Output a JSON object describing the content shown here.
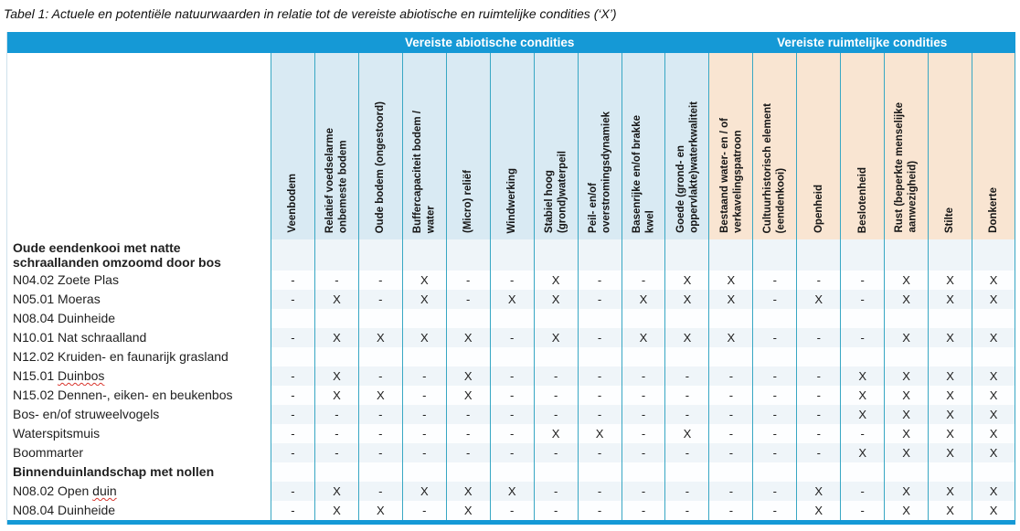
{
  "title": "Tabel 1: Actuele en potentiële natuurwaarden in relatie tot de vereiste abiotische en ruimtelijke condities (‘X’)",
  "colors": {
    "band_blue": "#1599d6",
    "abiotic_header_bg": "#d9eaf3",
    "spatial_header_bg": "#f9e5d2",
    "grid_border": "#38a7c4",
    "row_tint": "#eff5f9",
    "spellcheck_red": "#d8342c"
  },
  "table": {
    "group_headers": [
      {
        "label": "Vereiste abiotische condities",
        "span": 10
      },
      {
        "label": "Vereiste ruimtelijke condities",
        "span": 7
      }
    ],
    "columns": [
      {
        "label": "Veenbodem",
        "group": "abiotisch"
      },
      {
        "label": "Relatief voedselarme\nonbemeste bodem",
        "group": "abiotisch"
      },
      {
        "label": "Oude bodem (ongestoord)",
        "group": "abiotisch"
      },
      {
        "label": "Buffercapaciteit bodem /\nwater",
        "group": "abiotisch"
      },
      {
        "label": "(Micro) reliëf",
        "group": "abiotisch"
      },
      {
        "label": "Windwerking",
        "group": "abiotisch"
      },
      {
        "label": "Stabiel hoog\n(grond)waterpeil",
        "group": "abiotisch"
      },
      {
        "label": "Peil- en/of\noverstromingsdynamiek",
        "group": "abiotisch"
      },
      {
        "label": "Basenrijke en/of brakke\nkwel",
        "group": "abiotisch"
      },
      {
        "label": "Goede (grond- en\noppervlakte)waterkwaliteit",
        "group": "abiotisch"
      },
      {
        "label": "Bestaand water- en / of\nverkavelingspatroon",
        "group": "ruimtelijk"
      },
      {
        "label": "Cultuurhistorisch element\n(eendenkooi)",
        "group": "ruimtelijk"
      },
      {
        "label": "Openheid",
        "group": "ruimtelijk"
      },
      {
        "label": "Beslotenheid",
        "group": "ruimtelijk"
      },
      {
        "label": "Rust (beperkte menselijke\naanwezigheid)",
        "group": "ruimtelijk"
      },
      {
        "label": "Stilte",
        "group": "ruimtelijk"
      },
      {
        "label": "Donkerte",
        "group": "ruimtelijk"
      }
    ],
    "rows": [
      {
        "type": "section",
        "label": "Oude eendenkooi met natte\nschraallanden omzoomd door bos",
        "cells": []
      },
      {
        "type": "data",
        "label": "N04.02 Zoete Plas",
        "cells": [
          "-",
          "-",
          "-",
          "X",
          "-",
          "-",
          "X",
          "-",
          "-",
          "X",
          "X",
          "-",
          "-",
          "-",
          "X",
          "X",
          "X"
        ]
      },
      {
        "type": "data",
        "label": "N05.01 Moeras",
        "cells": [
          "-",
          "X",
          "-",
          "X",
          "-",
          "X",
          "X",
          "-",
          "X",
          "X",
          "X",
          "-",
          "X",
          "-",
          "X",
          "X",
          "X"
        ]
      },
      {
        "type": "data",
        "label": "N08.04 Duinheide",
        "cells": []
      },
      {
        "type": "data",
        "label": "N10.01 Nat schraalland",
        "cells": [
          "-",
          "X",
          "X",
          "X",
          "X",
          "-",
          "X",
          "-",
          "X",
          "X",
          "X",
          "-",
          "-",
          "-",
          "X",
          "X",
          "X"
        ]
      },
      {
        "type": "data",
        "label": "N12.02 Kruiden- en faunarijk grasland",
        "cells": []
      },
      {
        "type": "data",
        "label": "N15.01 Duinbos",
        "misspelled": "Duinbos",
        "cells": [
          "-",
          "X",
          "-",
          "-",
          "X",
          "-",
          "-",
          "-",
          "-",
          "-",
          "-",
          "-",
          "-",
          "X",
          "X",
          "X",
          "X"
        ]
      },
      {
        "type": "data",
        "label": "N15.02 Dennen-, eiken- en beukenbos",
        "cells": [
          "-",
          "X",
          "X",
          "-",
          "X",
          "-",
          "-",
          "-",
          "-",
          "-",
          "-",
          "-",
          "-",
          "X",
          "X",
          "X",
          "X"
        ]
      },
      {
        "type": "data",
        "label": "Bos- en/of struweelvogels",
        "cells": [
          "-",
          "-",
          "-",
          "-",
          "-",
          "-",
          "-",
          "-",
          "-",
          "-",
          "-",
          "-",
          "-",
          "X",
          "X",
          "X",
          "X"
        ]
      },
      {
        "type": "data",
        "label": "Waterspitsmuis",
        "cells": [
          "-",
          "-",
          "-",
          "-",
          "-",
          "-",
          "X",
          "X",
          "-",
          "X",
          "-",
          "-",
          "-",
          "-",
          "X",
          "X",
          "X"
        ]
      },
      {
        "type": "data",
        "label": "Boommarter",
        "cells": [
          "-",
          "-",
          "-",
          "-",
          "-",
          "-",
          "-",
          "-",
          "-",
          "-",
          "-",
          "-",
          "-",
          "X",
          "X",
          "X",
          "X"
        ]
      },
      {
        "type": "section",
        "label": "Binnenduinlandschap met nollen",
        "cells": []
      },
      {
        "type": "data",
        "label": "N08.02 Open duin",
        "misspelled": "duin",
        "cells": [
          "-",
          "X",
          "-",
          "X",
          "X",
          "X",
          "-",
          "-",
          "-",
          "-",
          "-",
          "-",
          "X",
          "-",
          "X",
          "X",
          "X"
        ]
      },
      {
        "type": "data",
        "label": "N08.04 Duinheide",
        "cells": [
          "-",
          "X",
          "X",
          "-",
          "X",
          "-",
          "-",
          "-",
          "-",
          "-",
          "-",
          "-",
          "X",
          "-",
          "X",
          "X",
          "X"
        ]
      }
    ]
  }
}
